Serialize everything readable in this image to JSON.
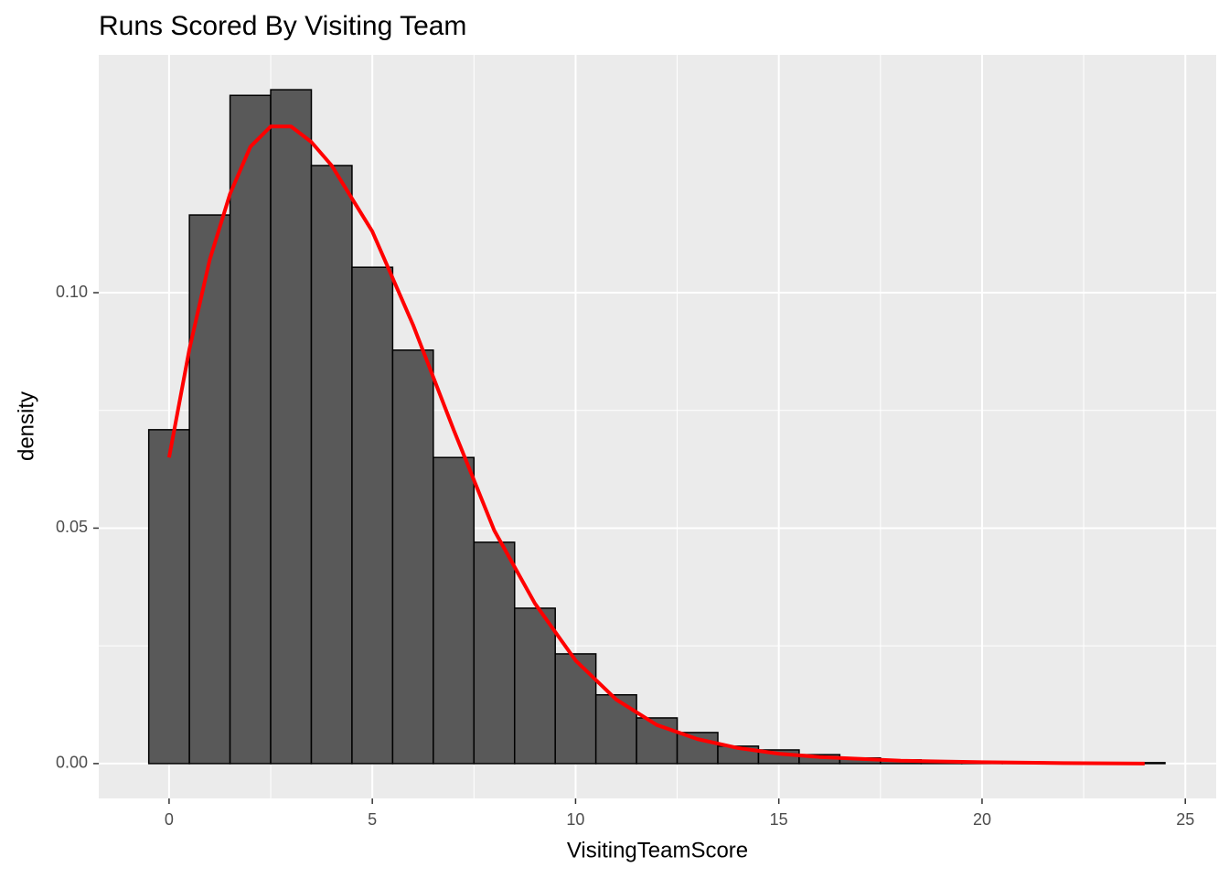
{
  "chart_data": {
    "type": "histogram",
    "title": "Runs Scored By Visiting Team",
    "x_label": "VisitingTeamScore",
    "y_label": "density",
    "bins": [
      -0.5,
      0.5,
      1.5,
      2.5,
      3.5,
      4.5,
      5.5,
      6.5,
      7.5,
      8.5,
      9.5,
      10.5,
      11.5,
      12.5,
      13.5,
      14.5,
      15.5,
      16.5,
      17.5,
      18.5,
      19.5,
      20.5,
      21.5,
      22.5,
      23.5,
      24.5
    ],
    "values": [
      0.0709,
      0.1165,
      0.1419,
      0.1431,
      0.127,
      0.1054,
      0.0878,
      0.065,
      0.047,
      0.033,
      0.0233,
      0.0146,
      0.0097,
      0.0066,
      0.0037,
      0.0029,
      0.0019,
      0.0012,
      0.0008,
      0.0006,
      0.0004,
      0.0002,
      0.0001,
      0.0001,
      0.0002
    ],
    "color": "#595959",
    "edgecolor": "#000000",
    "density": {
      "color": "#ff0000",
      "x": [
        0,
        0.5,
        1,
        1.5,
        2,
        2.5,
        3,
        3.5,
        4,
        5,
        6,
        7,
        8,
        9,
        10,
        11,
        12,
        13,
        14,
        15,
        16,
        18,
        20,
        22,
        24
      ],
      "values": [
        0.065,
        0.088,
        0.107,
        0.121,
        0.131,
        0.1353,
        0.1353,
        0.132,
        0.127,
        0.113,
        0.0932,
        0.0709,
        0.0495,
        0.034,
        0.0219,
        0.0136,
        0.0082,
        0.0052,
        0.0033,
        0.0021,
        0.0014,
        0.0006,
        0.0003,
        0.0001,
        0.0
      ]
    },
    "xlim": [
      -1.73,
      25.76
    ],
    "ylim": [
      -0.0074,
      0.1505
    ],
    "xticks": [
      0,
      5,
      10,
      15,
      20,
      25
    ],
    "yticks": [
      {
        "value": 0,
        "label": "0.00"
      },
      {
        "value": 0.05,
        "label": "0.05"
      },
      {
        "value": 0.1,
        "label": "0.10"
      }
    ],
    "grid": true
  }
}
